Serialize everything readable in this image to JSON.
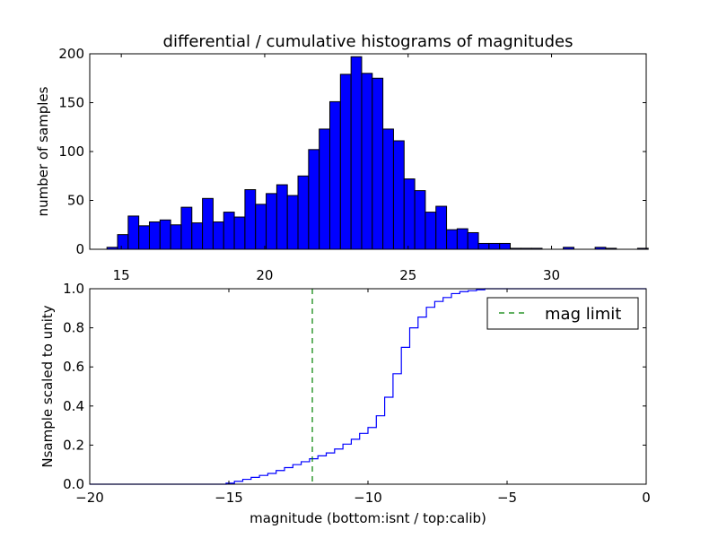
{
  "chart_data": [
    {
      "type": "bar",
      "panel": "top",
      "title": "differential / cumulative histograms of magnitudes",
      "xlabel": "",
      "ylabel": "number of samples",
      "xlim": [
        13.9,
        33.3
      ],
      "ylim": [
        0,
        200
      ],
      "bin_width": 0.37,
      "bin_left_edges": [
        14.5,
        14.87,
        15.24,
        15.61,
        15.98,
        16.35,
        16.72,
        17.09,
        17.46,
        17.83,
        18.2,
        18.57,
        18.94,
        19.31,
        19.68,
        20.05,
        20.42,
        20.79,
        21.16,
        21.53,
        21.9,
        22.27,
        22.64,
        23.01,
        23.38,
        23.75,
        24.12,
        24.49,
        24.86,
        25.23,
        25.6,
        25.97,
        26.34,
        26.71,
        27.08,
        27.45,
        27.82,
        28.19,
        28.56,
        28.93,
        29.3,
        29.67,
        30.04,
        30.41,
        30.78,
        31.15,
        31.52,
        31.89,
        32.26,
        32.63,
        33.0
      ],
      "values": [
        2,
        15,
        34,
        24,
        28,
        30,
        25,
        43,
        27,
        52,
        28,
        38,
        33,
        61,
        46,
        57,
        66,
        55,
        75,
        102,
        123,
        151,
        179,
        197,
        180,
        175,
        123,
        111,
        72,
        60,
        38,
        44,
        20,
        21,
        17,
        6,
        6,
        6,
        1,
        1,
        1,
        0,
        0,
        2,
        0,
        0,
        2,
        1,
        0,
        0,
        1
      ],
      "xticks": [
        15,
        20,
        25,
        30
      ],
      "yticks": [
        0,
        50,
        100,
        150,
        200
      ]
    },
    {
      "type": "line",
      "panel": "bottom",
      "xlabel": "magnitude (bottom:isnt / top:calib)",
      "ylabel": "Nsample scaled to unity",
      "xlim": [
        -20,
        0
      ],
      "ylim": [
        0,
        1.0
      ],
      "xticks": [
        -20,
        -15,
        -10,
        -5,
        0
      ],
      "ytick_labels": [
        "0.0",
        "0.2",
        "0.4",
        "0.6",
        "0.8",
        "1.0"
      ],
      "series": [
        {
          "name": "cumulative",
          "style": "step",
          "color": "#0000ff",
          "x": [
            -20,
            -15.1,
            -14.8,
            -14.5,
            -14.2,
            -13.9,
            -13.6,
            -13.3,
            -13.0,
            -12.7,
            -12.4,
            -12.1,
            -11.8,
            -11.5,
            -11.2,
            -10.9,
            -10.6,
            -10.3,
            -10.0,
            -9.7,
            -9.4,
            -9.1,
            -8.8,
            -8.5,
            -8.2,
            -7.9,
            -7.6,
            -7.3,
            -7.0,
            -6.7,
            -6.4,
            -6.1,
            -5.8,
            -5.5,
            -5.2,
            0
          ],
          "y": [
            0.0,
            0.005,
            0.015,
            0.025,
            0.035,
            0.045,
            0.055,
            0.07,
            0.085,
            0.1,
            0.115,
            0.13,
            0.145,
            0.16,
            0.18,
            0.205,
            0.23,
            0.26,
            0.29,
            0.35,
            0.445,
            0.565,
            0.7,
            0.8,
            0.855,
            0.905,
            0.935,
            0.955,
            0.975,
            0.985,
            0.99,
            0.995,
            1.0,
            1.0,
            1.0,
            1.0
          ]
        },
        {
          "name": "mag limit",
          "style": "dashed-vertical",
          "color": "#008000",
          "x": -12.0
        }
      ],
      "legend": {
        "entries": [
          "mag limit"
        ],
        "placement": "top-right"
      }
    }
  ]
}
